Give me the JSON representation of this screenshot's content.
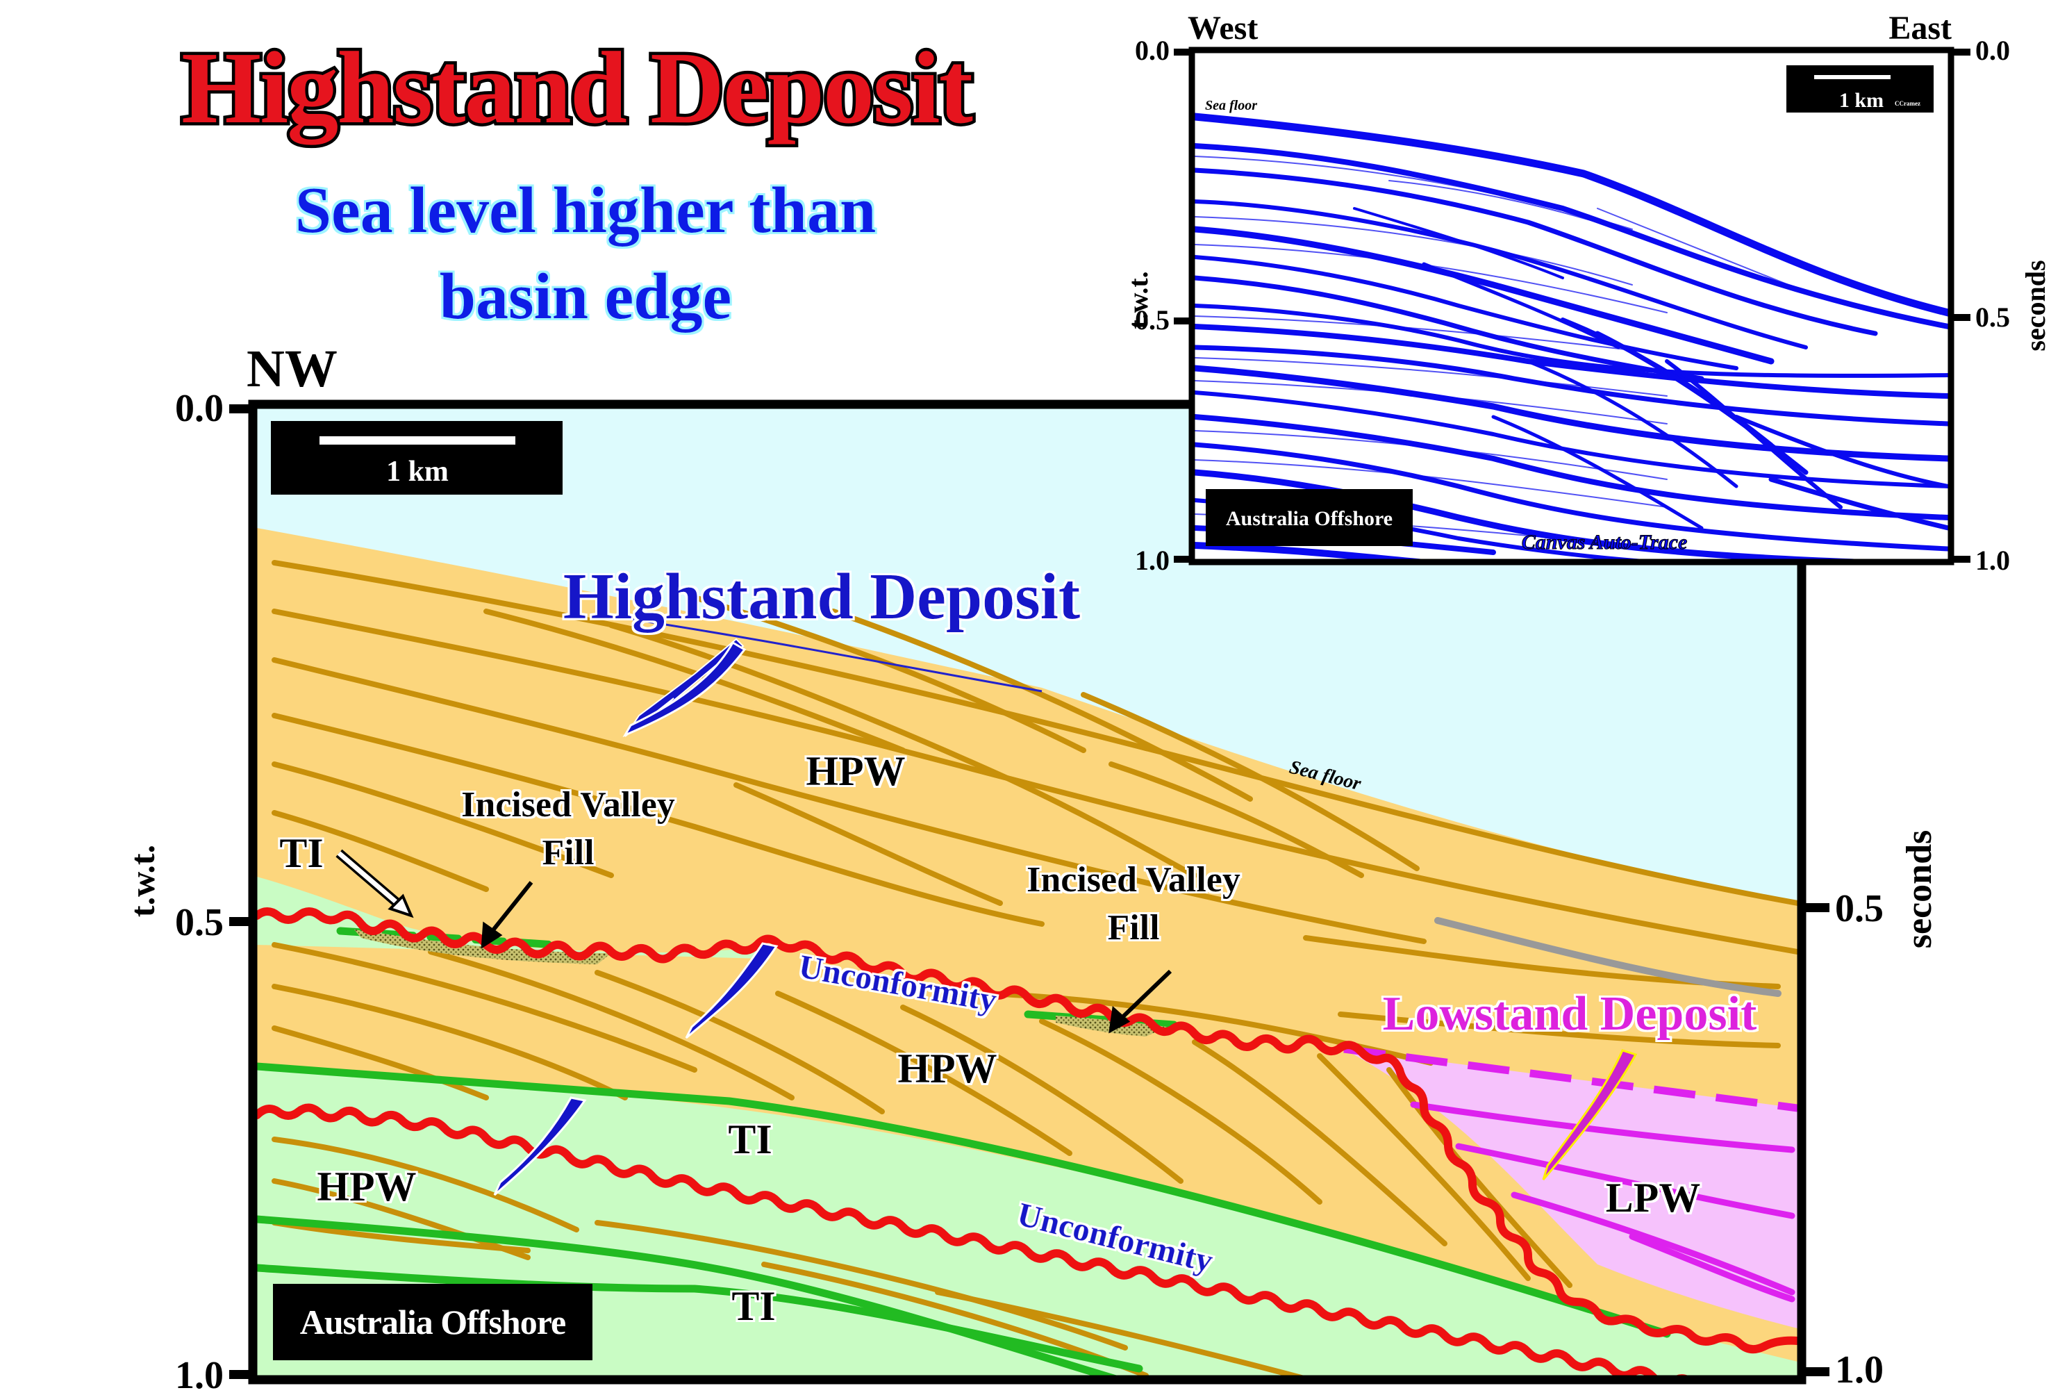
{
  "title": "Highstand Deposit",
  "subtitle_line1": "Sea level higher than",
  "subtitle_line2": "basin edge",
  "main_section": {
    "direction_left": "NW",
    "scale_label": "1 km",
    "location_label": "Australia Offshore",
    "yaxis_label": "t.w.t.",
    "yaxis_unit": "seconds",
    "ticks_left": [
      "0.0",
      "0.5",
      "1.0"
    ],
    "ticks_right": [
      "0.5",
      "1.0"
    ],
    "labels": {
      "highstand": "Highstand Deposit",
      "lowstand": "Lowstand Deposit",
      "sea_floor": "Sea floor",
      "hpw": "HPW",
      "lpw": "LPW",
      "ti": "TI",
      "unconformity": "Unconformity",
      "incised_line1": "Incised Valley",
      "incised_line2": "Fill"
    },
    "colors": {
      "sea": "#ddfbfd",
      "highstand_fill": "#fcd67d",
      "reflector": "#c8900a",
      "transgressive_fill": "#c9fcc4",
      "ti_line": "#22bb22",
      "lowstand_fill": "#f6c2fc",
      "lowstand_line": "#dd22ee",
      "unconformity": "#ee1111",
      "title_red": "#e6141e",
      "label_blue": "#1414c8",
      "label_magenta": "#dd22dd"
    }
  },
  "inset": {
    "west": "West",
    "east": "East",
    "sea_floor": "Sea floor",
    "scale_label": "1 km",
    "copyright": "CCramez",
    "location_label": "Australia Offshore",
    "credit": "Canvas Auto-Trace",
    "yaxis_label": "t.w.t.",
    "yaxis_unit": "seconds",
    "ticks": [
      "0.0",
      "0.5",
      "1.0"
    ]
  }
}
